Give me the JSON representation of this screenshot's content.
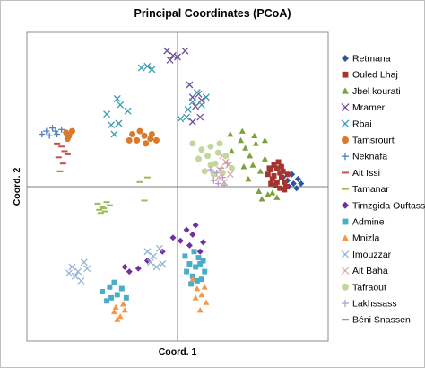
{
  "chart_data": {
    "type": "scatter",
    "title": "Principal Coordinates (PCoA)",
    "xlabel": "Coord. 1",
    "ylabel": "Coord. 2",
    "xlim": [
      -1,
      1
    ],
    "ylim": [
      -1,
      1
    ],
    "grid": false,
    "legend_position": "right",
    "series": [
      {
        "name": "Retmana",
        "marker": "diamond",
        "color": "#2e5597",
        "points": [
          [
            0.73,
            0.04
          ],
          [
            0.77,
            0.02
          ],
          [
            0.8,
            0.05
          ],
          [
            0.76,
            0.08
          ],
          [
            0.7,
            0.06
          ],
          [
            0.79,
            -0.01
          ],
          [
            0.74,
            0.0
          ],
          [
            0.82,
            0.02
          ]
        ]
      },
      {
        "name": "Ouled Lhaj",
        "marker": "square",
        "color": "#a5342f",
        "points": [
          [
            0.6,
            0.08
          ],
          [
            0.62,
            0.11
          ],
          [
            0.64,
            0.14
          ],
          [
            0.66,
            0.12
          ],
          [
            0.68,
            0.09
          ],
          [
            0.63,
            0.05
          ],
          [
            0.66,
            0.03
          ],
          [
            0.69,
            0.06
          ],
          [
            0.71,
            0.03
          ],
          [
            0.72,
            0.0
          ],
          [
            0.68,
            -0.01
          ],
          [
            0.64,
            0.07
          ],
          [
            0.61,
            0.12
          ],
          [
            0.67,
            0.16
          ],
          [
            0.7,
            0.1
          ],
          [
            0.73,
            0.08
          ],
          [
            0.65,
            0.01
          ],
          [
            0.69,
            0.13
          ],
          [
            0.62,
            0.02
          ],
          [
            0.71,
            -0.02
          ]
        ]
      },
      {
        "name": "Jbel kourati",
        "marker": "triangle",
        "color": "#7ba13b",
        "points": [
          [
            0.35,
            0.34
          ],
          [
            0.42,
            0.3
          ],
          [
            0.45,
            0.25
          ],
          [
            0.48,
            0.2
          ],
          [
            0.5,
            0.14
          ],
          [
            0.55,
            0.1
          ],
          [
            0.58,
            0.18
          ],
          [
            0.43,
            0.36
          ],
          [
            0.36,
            0.23
          ],
          [
            0.58,
            0.3
          ],
          [
            0.52,
            0.28
          ],
          [
            0.47,
            0.05
          ],
          [
            0.54,
            -0.03
          ],
          [
            0.6,
            -0.05
          ],
          [
            0.56,
            -0.08
          ],
          [
            0.63,
            -0.04
          ],
          [
            0.66,
            -0.07
          ],
          [
            0.44,
            0.13
          ],
          [
            0.51,
            0.33
          ]
        ]
      },
      {
        "name": "Mramer",
        "marker": "x",
        "color": "#6e4f9a",
        "points": [
          [
            -0.07,
            0.88
          ],
          [
            -0.03,
            0.85
          ],
          [
            0.0,
            0.84
          ],
          [
            0.05,
            0.88
          ],
          [
            -0.05,
            0.82
          ],
          [
            0.1,
            0.58
          ],
          [
            0.12,
            0.52
          ],
          [
            0.15,
            0.45
          ],
          [
            0.1,
            0.42
          ],
          [
            0.16,
            0.56
          ],
          [
            0.08,
            0.66
          ],
          [
            0.14,
            0.6
          ]
        ]
      },
      {
        "name": "Rbai",
        "marker": "x",
        "color": "#3b9ab2",
        "points": [
          [
            -0.24,
            0.77
          ],
          [
            -0.2,
            0.78
          ],
          [
            -0.17,
            0.76
          ],
          [
            -0.4,
            0.57
          ],
          [
            -0.38,
            0.53
          ],
          [
            -0.47,
            0.47
          ],
          [
            -0.44,
            0.4
          ],
          [
            -0.33,
            0.49
          ],
          [
            -0.39,
            0.41
          ],
          [
            0.07,
            0.5
          ],
          [
            0.1,
            0.55
          ],
          [
            0.13,
            0.61
          ],
          [
            0.16,
            0.53
          ],
          [
            0.06,
            0.45
          ],
          [
            0.19,
            0.58
          ],
          [
            0.02,
            0.44
          ],
          [
            -0.42,
            0.34
          ]
        ]
      },
      {
        "name": "Tamsrourt",
        "marker": "circle",
        "color": "#d9792b",
        "points": [
          [
            -0.7,
            0.36
          ],
          [
            -0.72,
            0.33
          ],
          [
            -0.74,
            0.35
          ],
          [
            -0.73,
            0.31
          ],
          [
            -0.3,
            0.34
          ],
          [
            -0.27,
            0.3
          ],
          [
            -0.22,
            0.33
          ],
          [
            -0.17,
            0.34
          ],
          [
            -0.21,
            0.28
          ],
          [
            -0.14,
            0.3
          ],
          [
            -0.25,
            0.36
          ],
          [
            -0.32,
            0.3
          ],
          [
            -0.18,
            0.31
          ]
        ]
      },
      {
        "name": "Neknafa",
        "marker": "plus",
        "color": "#4f81bd",
        "points": [
          [
            -0.87,
            0.36
          ],
          [
            -0.83,
            0.38
          ],
          [
            -0.8,
            0.34
          ],
          [
            -0.85,
            0.33
          ],
          [
            -0.77,
            0.37
          ],
          [
            -0.81,
            0.36
          ],
          [
            -0.9,
            0.34
          ]
        ]
      },
      {
        "name": "Ait Issi",
        "marker": "dash",
        "color": "#c0504d",
        "points": [
          [
            -0.77,
            0.26
          ],
          [
            -0.75,
            0.23
          ],
          [
            -0.79,
            0.19
          ],
          [
            -0.76,
            0.15
          ],
          [
            -0.78,
            0.1
          ],
          [
            -0.73,
            0.21
          ],
          [
            -0.8,
            0.28
          ]
        ]
      },
      {
        "name": "Tamanar",
        "marker": "dash",
        "color": "#9bbb59",
        "points": [
          [
            -0.47,
            -0.1
          ],
          [
            -0.5,
            -0.13
          ],
          [
            -0.52,
            -0.15
          ],
          [
            -0.48,
            -0.16
          ],
          [
            -0.51,
            -0.17
          ],
          [
            -0.45,
            -0.12
          ],
          [
            -0.53,
            -0.11
          ],
          [
            -0.49,
            -0.14
          ],
          [
            -0.25,
            0.03
          ],
          [
            -0.22,
            -0.09
          ],
          [
            -0.2,
            0.06
          ]
        ]
      },
      {
        "name": "Timzgida Ouftass",
        "marker": "diamond",
        "color": "#7030a0",
        "points": [
          [
            -0.03,
            -0.33
          ],
          [
            0.02,
            -0.35
          ],
          [
            0.06,
            -0.28
          ],
          [
            0.12,
            -0.25
          ],
          [
            0.1,
            -0.31
          ],
          [
            -0.1,
            -0.42
          ],
          [
            -0.2,
            -0.48
          ],
          [
            -0.26,
            -0.53
          ],
          [
            -0.32,
            -0.55
          ],
          [
            -0.35,
            -0.52
          ],
          [
            0.15,
            -0.42
          ],
          [
            0.17,
            -0.36
          ],
          [
            0.08,
            -0.38
          ]
        ]
      },
      {
        "name": "Admine",
        "marker": "square",
        "color": "#4bacc6",
        "points": [
          [
            0.05,
            -0.45
          ],
          [
            0.08,
            -0.5
          ],
          [
            0.12,
            -0.52
          ],
          [
            0.1,
            -0.58
          ],
          [
            0.16,
            -0.6
          ],
          [
            0.14,
            -0.46
          ],
          [
            0.06,
            -0.55
          ],
          [
            0.15,
            -0.5
          ],
          [
            0.18,
            -0.55
          ],
          [
            0.11,
            -0.42
          ],
          [
            0.13,
            -0.61
          ],
          [
            0.09,
            -0.63
          ],
          [
            0.17,
            -0.48
          ],
          [
            -0.5,
            -0.68
          ],
          [
            -0.44,
            -0.72
          ],
          [
            -0.4,
            -0.7
          ],
          [
            -0.37,
            -0.66
          ],
          [
            -0.47,
            -0.74
          ],
          [
            -0.42,
            -0.62
          ],
          [
            -0.34,
            -0.72
          ],
          [
            -0.45,
            -0.65
          ]
        ]
      },
      {
        "name": "Mnizla",
        "marker": "triangle",
        "color": "#f79646",
        "points": [
          [
            -0.42,
            -0.81
          ],
          [
            -0.38,
            -0.84
          ],
          [
            -0.35,
            -0.8
          ],
          [
            -0.4,
            -0.86
          ],
          [
            -0.36,
            -0.76
          ],
          [
            -0.41,
            -0.78
          ],
          [
            0.1,
            -0.6
          ],
          [
            0.13,
            -0.66
          ],
          [
            0.16,
            -0.7
          ],
          [
            0.19,
            -0.75
          ],
          [
            0.15,
            -0.8
          ],
          [
            0.18,
            -0.65
          ],
          [
            0.12,
            -0.72
          ]
        ]
      },
      {
        "name": "Imouzzar",
        "marker": "x",
        "color": "#95b3d7",
        "points": [
          [
            -0.7,
            -0.52
          ],
          [
            -0.66,
            -0.55
          ],
          [
            -0.62,
            -0.49
          ],
          [
            -0.68,
            -0.58
          ],
          [
            -0.64,
            -0.61
          ],
          [
            -0.6,
            -0.53
          ],
          [
            -0.72,
            -0.56
          ],
          [
            -0.2,
            -0.42
          ],
          [
            -0.16,
            -0.45
          ],
          [
            -0.12,
            -0.4
          ],
          [
            -0.1,
            -0.5
          ],
          [
            -0.14,
            -0.52
          ],
          [
            -0.18,
            -0.49
          ]
        ]
      },
      {
        "name": "Ait Baha",
        "marker": "x",
        "color": "#e6a9a3",
        "points": [
          [
            0.28,
            0.11
          ],
          [
            0.32,
            0.16
          ],
          [
            0.35,
            0.08
          ],
          [
            0.3,
            0.2
          ],
          [
            0.34,
            0.14
          ],
          [
            0.27,
            0.06
          ],
          [
            0.31,
            0.03
          ]
        ]
      },
      {
        "name": "Tafraout",
        "marker": "circle",
        "color": "#c4d79b",
        "points": [
          [
            0.1,
            0.28
          ],
          [
            0.16,
            0.24
          ],
          [
            0.22,
            0.26
          ],
          [
            0.2,
            0.2
          ],
          [
            0.27,
            0.22
          ],
          [
            0.25,
            0.15
          ],
          [
            0.18,
            0.1
          ],
          [
            0.24,
            0.08
          ],
          [
            0.32,
            0.2
          ],
          [
            0.36,
            0.12
          ],
          [
            0.28,
            0.28
          ],
          [
            0.14,
            0.18
          ],
          [
            0.3,
            0.09
          ],
          [
            0.22,
            0.14
          ]
        ]
      },
      {
        "name": "Lakhssass",
        "marker": "plus",
        "color": "#b1a0c7",
        "points": [
          [
            0.24,
            0.04
          ],
          [
            0.27,
            0.02
          ],
          [
            0.3,
            0.06
          ],
          [
            0.26,
            0.09
          ],
          [
            0.29,
            0.12
          ],
          [
            0.33,
            0.15
          ],
          [
            0.22,
            0.11
          ],
          [
            0.31,
            0.01
          ]
        ]
      },
      {
        "name": "Béni Snassen",
        "marker": "dash",
        "color": "#7f7f7f",
        "points": []
      }
    ]
  }
}
